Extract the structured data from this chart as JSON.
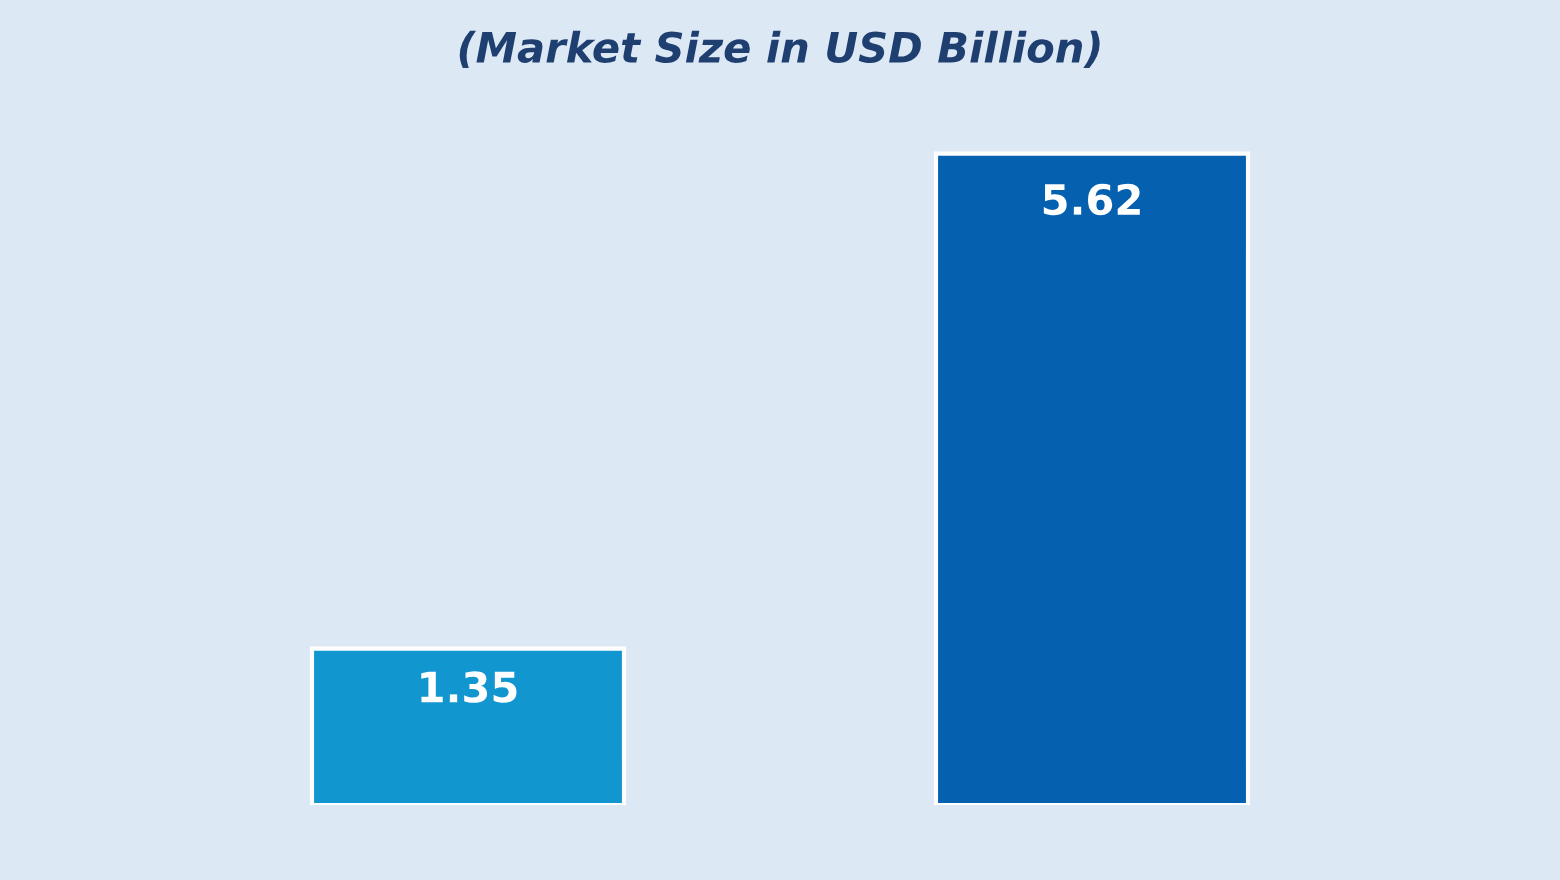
{
  "chart_data": {
    "type": "bar",
    "title": "(Market Size in USD Billion)",
    "categories": [
      null,
      null
    ],
    "values": [
      1.35,
      5.62
    ],
    "colors": [
      "#1296d0",
      "#0560b0"
    ],
    "data_labels": true
  }
}
